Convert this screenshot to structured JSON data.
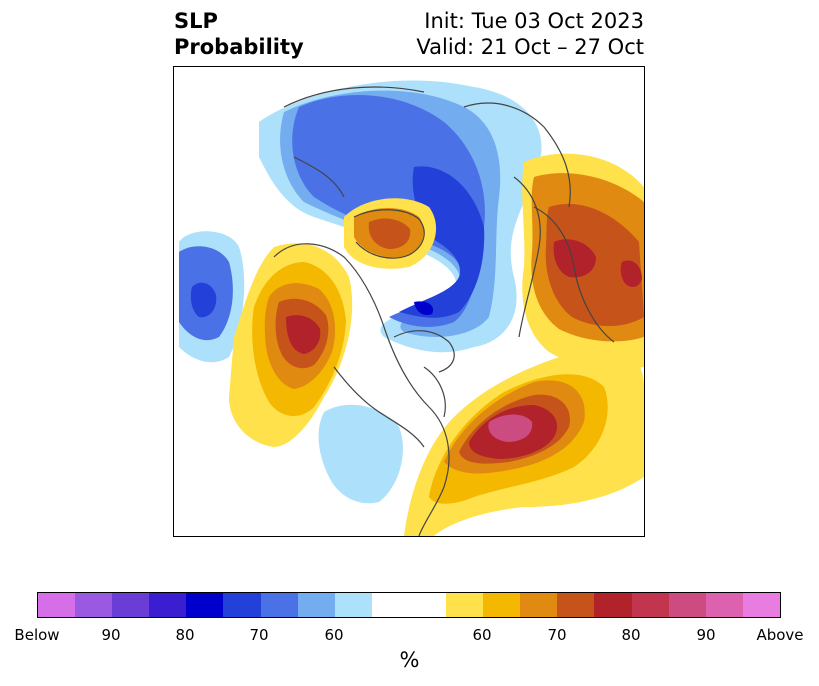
{
  "title": {
    "left_line1": "SLP",
    "left_line2": "Probability",
    "right_line1": "Init: Tue 03 Oct 2023",
    "right_line2": "Valid: 21 Oct – 27 Oct"
  },
  "colorbar": {
    "unit": "%",
    "colors": [
      "#d66ee8",
      "#9b58e0",
      "#6a3ed6",
      "#3a1ed0",
      "#0000cd",
      "#2340d8",
      "#4a72e6",
      "#74acf0",
      "#ade0fb",
      "#ffffff",
      "#ffe14c",
      "#f5b800",
      "#e08a12",
      "#c6541a",
      "#b1222a",
      "#c2354e",
      "#cc4c82",
      "#dc62b0",
      "#e87ce0"
    ],
    "tick_labels": [
      "Below",
      "90",
      "80",
      "70",
      "60",
      "60",
      "70",
      "80",
      "90",
      "Above"
    ]
  },
  "map": {
    "anomaly_colors": {
      "below_light": "#ade0fb",
      "below_mid": "#74acf0",
      "below_strong": "#4a72e6",
      "below_deep": "#2340d8",
      "below_max": "#0000cd",
      "above_light": "#ffe14c",
      "above_mid": "#f5b800",
      "above_strong": "#e08a12",
      "above_deep": "#c6541a",
      "above_red": "#b1222a",
      "above_max": "#cc4c82",
      "coastline": "#444444"
    }
  }
}
